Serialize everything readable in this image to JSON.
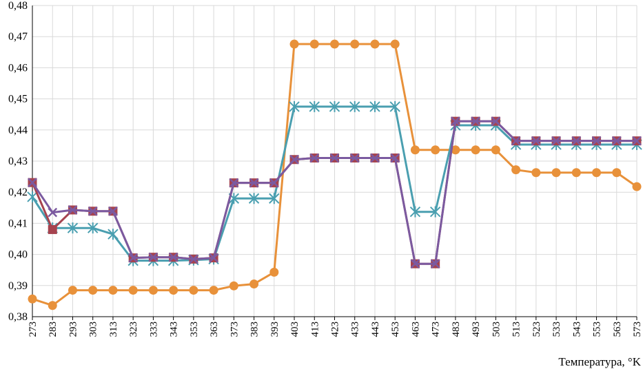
{
  "chart_data": {
    "type": "line",
    "title": "",
    "xlabel": "Температура, °K",
    "ylabel": "",
    "x": [
      273,
      283,
      293,
      303,
      313,
      323,
      333,
      343,
      353,
      363,
      373,
      383,
      393,
      403,
      413,
      423,
      433,
      443,
      453,
      463,
      473,
      483,
      493,
      503,
      513,
      523,
      533,
      543,
      553,
      563,
      573
    ],
    "ylim": [
      0.38,
      0.48
    ],
    "ytick_step": 0.01,
    "grid": true,
    "legend": "none",
    "series": [
      {
        "color": "#e8913a",
        "marker": "circle",
        "values": [
          0.3857,
          0.3836,
          0.3885,
          0.3885,
          0.3885,
          0.3885,
          0.3885,
          0.3885,
          0.3885,
          0.3885,
          0.3899,
          0.3905,
          0.3943,
          0.4676,
          0.4676,
          0.4676,
          0.4676,
          0.4676,
          0.4676,
          0.4336,
          0.4336,
          0.4336,
          0.4336,
          0.4336,
          0.4272,
          0.4263,
          0.4263,
          0.4263,
          0.4263,
          0.4263,
          0.4218
        ]
      },
      {
        "color": "#4a9fb0",
        "marker": "asterisk",
        "values": [
          0.4185,
          0.4085,
          0.4085,
          0.4085,
          0.4065,
          0.398,
          0.398,
          0.398,
          0.3982,
          0.3985,
          0.418,
          0.418,
          0.418,
          0.4475,
          0.4475,
          0.4475,
          0.4475,
          0.4475,
          0.4475,
          0.4137,
          0.4137,
          0.4415,
          0.4415,
          0.4415,
          0.4353,
          0.4353,
          0.4353,
          0.4353,
          0.4353,
          0.4353,
          0.4353
        ]
      },
      {
        "color": "#a6434f",
        "marker": "square",
        "values": [
          0.4231,
          0.408,
          0.4143,
          0.4139,
          0.4139,
          0.3989,
          0.3991,
          0.3991,
          0.3985,
          0.3989,
          0.423,
          0.423,
          0.423,
          0.4305,
          0.431,
          0.431,
          0.431,
          0.431,
          0.431,
          0.397,
          0.397,
          0.4428,
          0.4428,
          0.4428,
          0.4365,
          0.4365,
          0.4365,
          0.4365,
          0.4365,
          0.4365,
          0.4365
        ]
      },
      {
        "color": "#7b5aa0",
        "marker": "x",
        "values": [
          0.4231,
          0.4135,
          0.4143,
          0.4139,
          0.4139,
          0.3989,
          0.3991,
          0.3991,
          0.3985,
          0.3989,
          0.423,
          0.423,
          0.423,
          0.4305,
          0.431,
          0.431,
          0.431,
          0.431,
          0.431,
          0.397,
          0.397,
          0.4428,
          0.4428,
          0.4428,
          0.4365,
          0.4365,
          0.4365,
          0.4365,
          0.4365,
          0.4365,
          0.4365
        ]
      }
    ]
  }
}
